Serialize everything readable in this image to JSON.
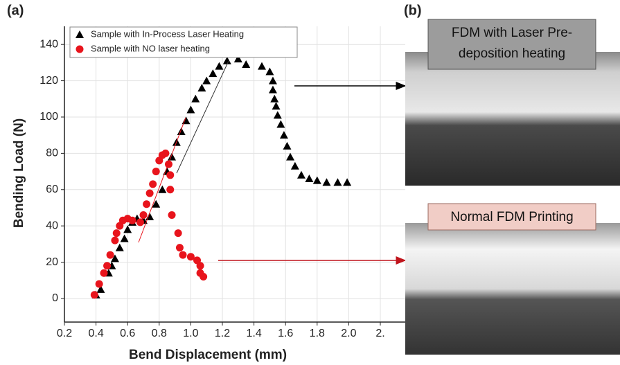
{
  "chart_data": {
    "type": "scatter",
    "xlabel": "Bend Displacement (mm)",
    "ylabel": "Bending Load (N)",
    "xlim": [
      0.2,
      2.2
    ],
    "ylim": [
      -13,
      150
    ],
    "xticks": [
      0.2,
      0.4,
      0.6,
      0.8,
      {
        "value": 1.0,
        "label": "1.0"
      },
      1.2,
      1.4,
      1.6,
      1.8,
      {
        "value": 2.0,
        "label": "2.0"
      },
      {
        "value": 2.2,
        "label": "2."
      }
    ],
    "yticks": [
      0,
      20,
      40,
      60,
      80,
      100,
      120,
      140
    ],
    "grid": true,
    "legend": "upper left",
    "series": [
      {
        "name": "Sample with In-Process Laser Heating",
        "color": "#000000",
        "marker": "triangle",
        "x": [
          0.4,
          0.43,
          0.48,
          0.5,
          0.52,
          0.55,
          0.58,
          0.6,
          0.63,
          0.66,
          0.7,
          0.74,
          0.78,
          0.82,
          0.85,
          0.88,
          0.91,
          0.94,
          0.97,
          1.0,
          1.03,
          1.07,
          1.1,
          1.14,
          1.18,
          1.23,
          1.3,
          1.35,
          1.45,
          1.5,
          1.52,
          1.52,
          1.53,
          1.54,
          1.55,
          1.57,
          1.59,
          1.61,
          1.63,
          1.66,
          1.7,
          1.75,
          1.8,
          1.86,
          1.93,
          1.99
        ],
        "values": [
          2,
          5,
          14,
          18,
          22,
          28,
          33,
          38,
          42,
          44,
          43,
          45,
          52,
          60,
          70,
          78,
          86,
          92,
          98,
          104,
          110,
          116,
          120,
          124,
          128,
          131,
          132,
          129,
          128,
          125,
          120,
          115,
          110,
          106,
          101,
          96,
          90,
          84,
          78,
          73,
          68,
          66,
          65,
          64,
          64,
          64
        ]
      },
      {
        "name": "Sample with NO laser heating",
        "color": "#e8141c",
        "marker": "circle",
        "x": [
          0.39,
          0.42,
          0.45,
          0.47,
          0.49,
          0.52,
          0.53,
          0.55,
          0.57,
          0.6,
          0.63,
          0.68,
          0.7,
          0.72,
          0.74,
          0.76,
          0.78,
          0.8,
          0.82,
          0.84,
          0.86,
          0.87,
          0.87,
          0.88,
          0.92,
          0.93,
          0.95,
          1.0,
          1.04,
          1.06,
          1.06,
          1.08
        ],
        "values": [
          2,
          8,
          14,
          18,
          24,
          32,
          36,
          40,
          43,
          44,
          43,
          42,
          46,
          52,
          58,
          63,
          70,
          76,
          79,
          80,
          74,
          68,
          60,
          46,
          36,
          28,
          24,
          23,
          21,
          18,
          14,
          12
        ]
      }
    ]
  },
  "panel_labels": [
    "(a)",
    "(b)"
  ],
  "photos": [
    {
      "label": [
        "FDM with Laser Pre-",
        "deposition heating"
      ]
    },
    {
      "label": [
        "Normal FDM Printing"
      ]
    }
  ]
}
